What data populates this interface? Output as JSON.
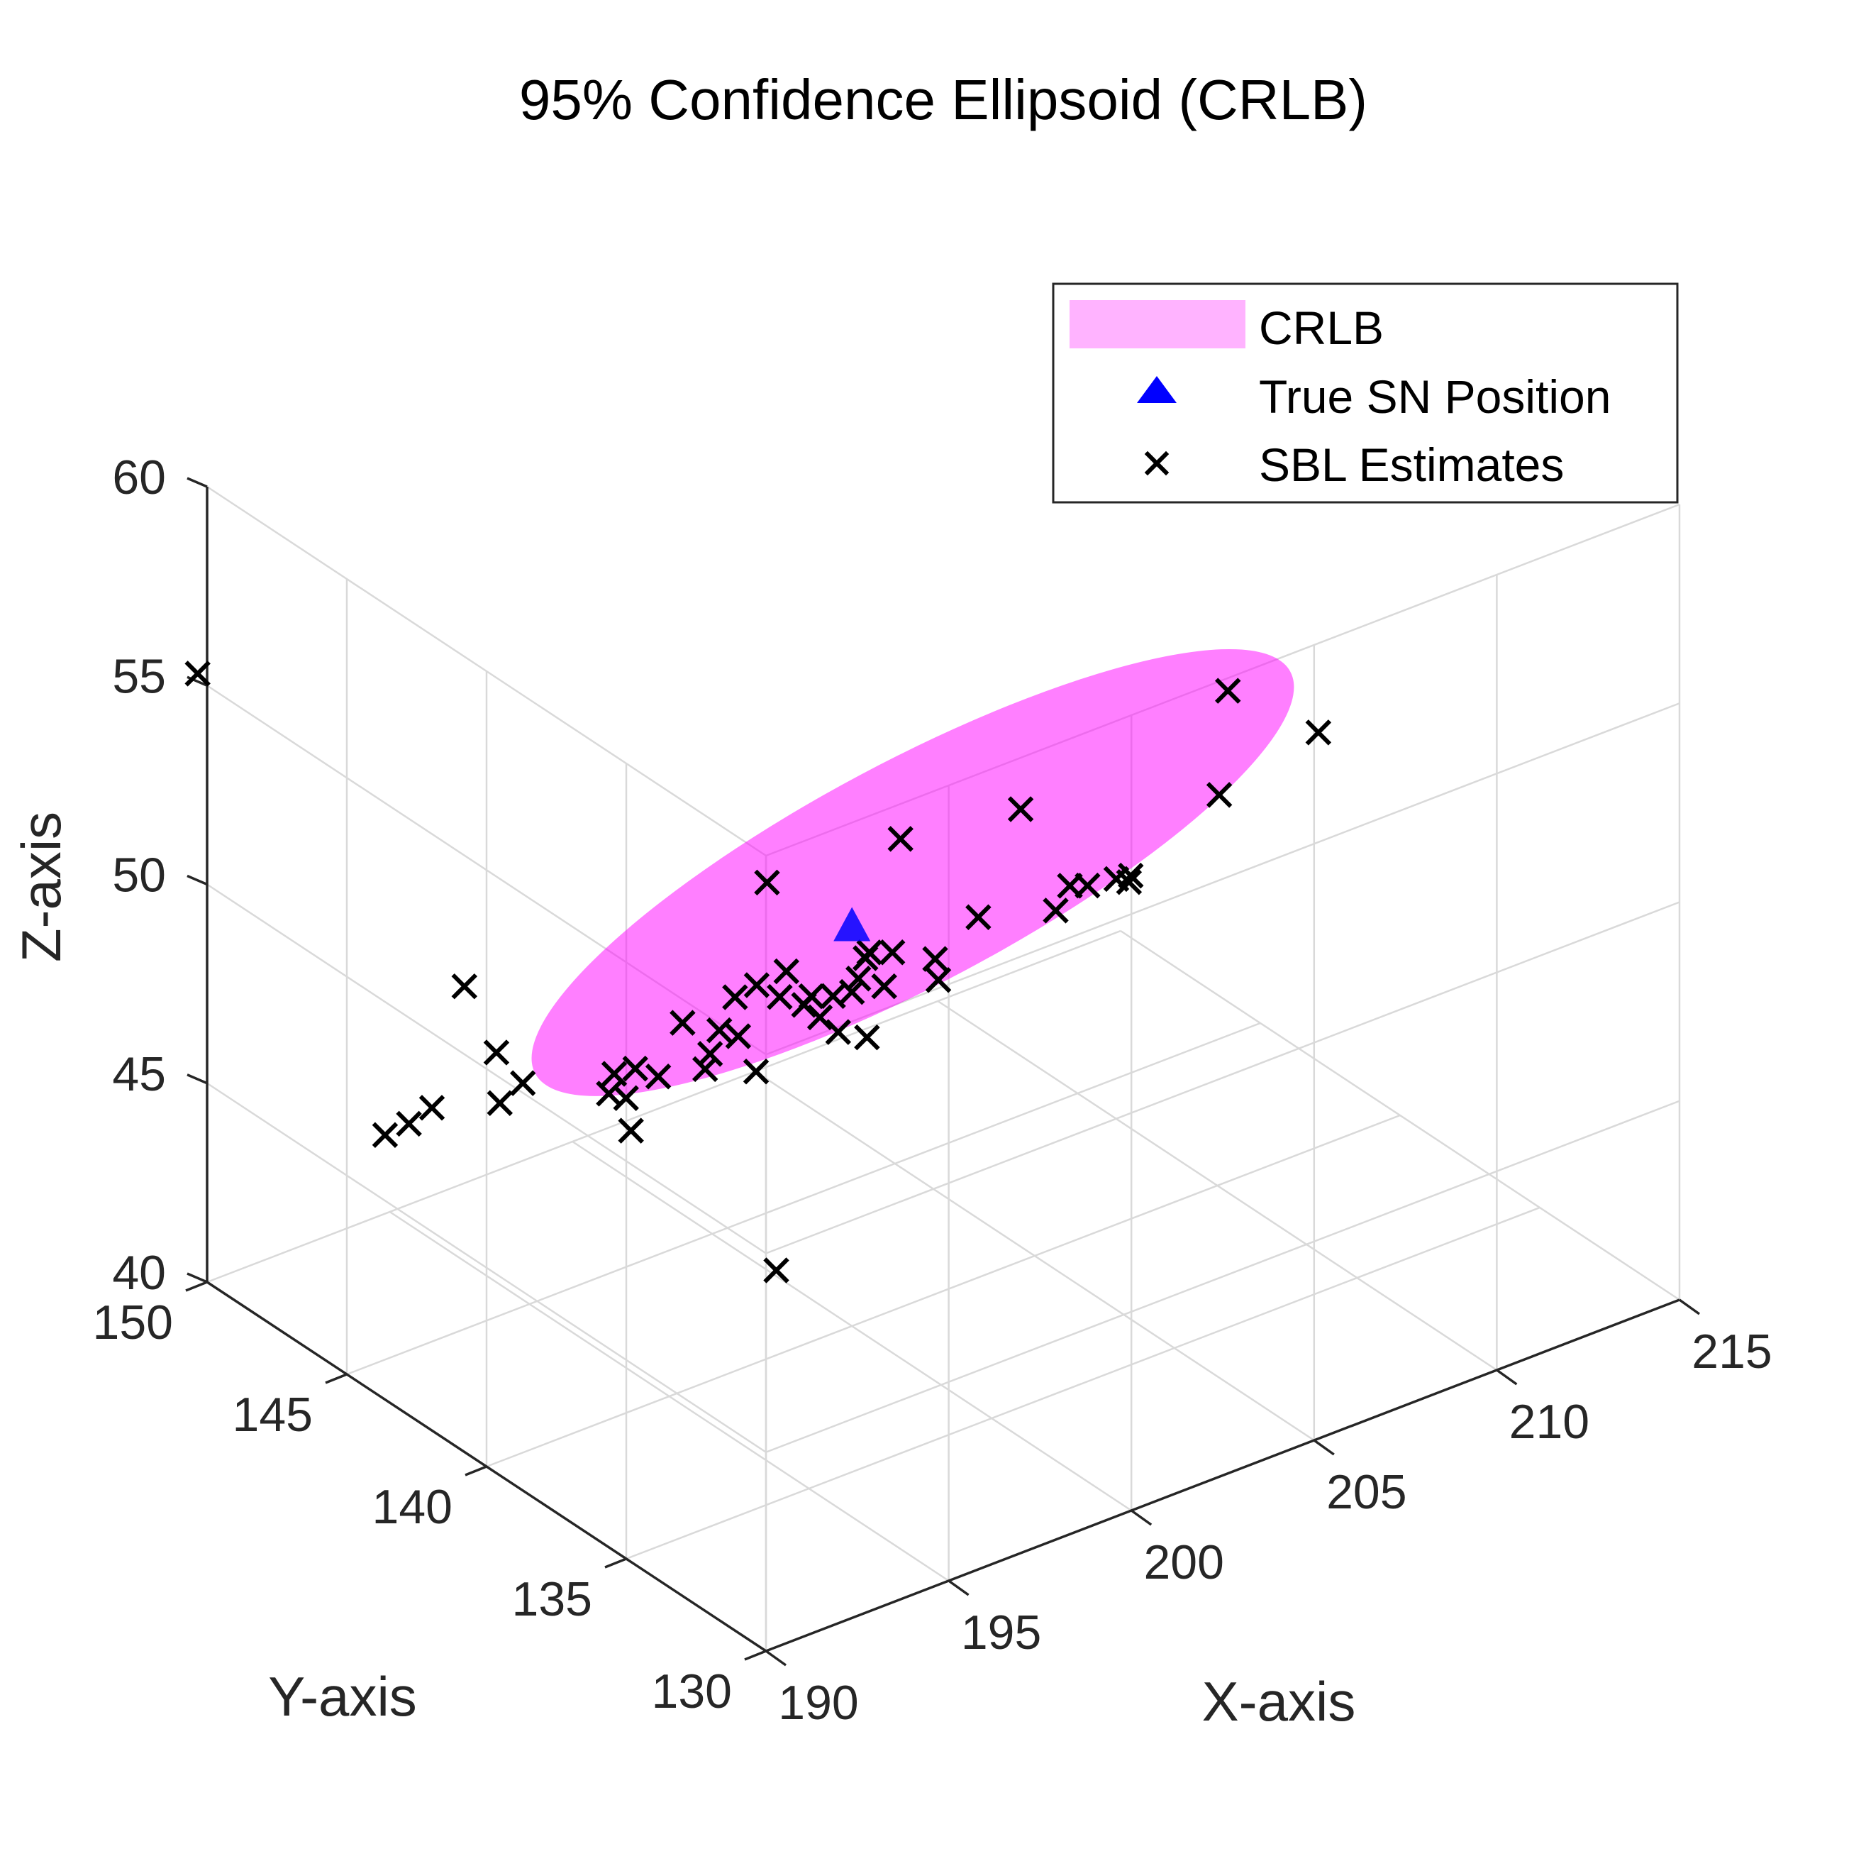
{
  "chart_data": {
    "type": "scatter3d",
    "title": "95% Confidence Ellipsoid (CRLB)",
    "xlabel": "X-axis",
    "ylabel": "Y-axis",
    "zlabel": "Z-axis",
    "xlim": [
      190,
      215
    ],
    "ylim": [
      130,
      150
    ],
    "zlim": [
      40,
      60
    ],
    "xticks": [
      190,
      195,
      200,
      205,
      210,
      215
    ],
    "yticks": [
      130,
      135,
      140,
      145,
      150
    ],
    "zticks": [
      40,
      45,
      50,
      55,
      60
    ],
    "grid": true,
    "legend": {
      "placement": "top-right",
      "entries": [
        {
          "label": "CRLB",
          "type": "patch",
          "color": "#FFB3FF"
        },
        {
          "label": "True SN Position",
          "type": "triangle",
          "color": "#0000FF"
        },
        {
          "label": "SBL Estimates",
          "type": "x",
          "color": "#000000"
        }
      ]
    },
    "ellipsoid": {
      "label": "CRLB",
      "color": "#FF00FF",
      "opacity": 0.5,
      "center": [
        202.2,
        140.7,
        50.3
      ],
      "semi_axes": [
        11.5,
        2.2,
        4.5
      ],
      "rotation_deg": 28
    },
    "true_position": {
      "label": "True SN Position",
      "x": 200,
      "y": 140,
      "z": 50,
      "color": "#0000FF"
    },
    "estimates": {
      "label": "SBL Estimates",
      "marker": "x",
      "color": "#000000",
      "points": [
        [
          206.1,
          138.0,
          50.1
        ],
        [
          205.2,
          139.0,
          49.7
        ],
        [
          205.0,
          140.5,
          51.0
        ],
        [
          201.1,
          139.7,
          52.0
        ],
        [
          198.9,
          141.6,
          50.8
        ],
        [
          200.0,
          140.0,
          48.4
        ],
        [
          200.5,
          139.5,
          48.6
        ],
        [
          199.8,
          139.2,
          47.7
        ],
        [
          202.2,
          139.9,
          48.5
        ],
        [
          199.2,
          140.1,
          48.0
        ],
        [
          200.6,
          140.3,
          48.9
        ],
        [
          201.6,
          139.0,
          48.6
        ],
        [
          200.4,
          141.2,
          47.6
        ],
        [
          200.8,
          139.6,
          49.3
        ],
        [
          206.7,
          139.3,
          49.2
        ],
        [
          203.0,
          139.4,
          49.5
        ],
        [
          204.2,
          138.2,
          49.8
        ],
        [
          205.9,
          137.8,
          50.1
        ],
        [
          205.3,
          138.5,
          49.9
        ],
        [
          208.6,
          138.1,
          51.2
        ],
        [
          209.6,
          139.1,
          53.0
        ],
        [
          210.7,
          137.3,
          52.4
        ],
        [
          198.0,
          139.1,
          49.2
        ],
        [
          197.3,
          139.9,
          47.4
        ],
        [
          197.7,
          140.4,
          49.2
        ],
        [
          199.2,
          141.3,
          48.6
        ],
        [
          198.1,
          140.1,
          48.9
        ],
        [
          196.6,
          140.3,
          48.5
        ],
        [
          197.5,
          140.8,
          47.8
        ],
        [
          196.9,
          141.2,
          47.0
        ],
        [
          196.0,
          141.7,
          46.9
        ],
        [
          195.5,
          142.2,
          46.3
        ],
        [
          195.6,
          142.0,
          47.1
        ],
        [
          194.8,
          141.9,
          46.8
        ],
        [
          197.8,
          142.2,
          46.6
        ],
        [
          192.3,
          143.8,
          49.5
        ],
        [
          193.1,
          143.7,
          47.6
        ],
        [
          193.5,
          144.1,
          46.0
        ],
        [
          192.1,
          144.7,
          46.1
        ],
        [
          193.9,
          143.8,
          46.5
        ],
        [
          199.5,
          140.8,
          48.1
        ],
        [
          191.2,
          145.2,
          45.5
        ],
        [
          191.7,
          145.0,
          45.7
        ],
        [
          195.1,
          142.1,
          47.1
        ],
        [
          200.4,
          139.9,
          49.3
        ],
        [
          201.4,
          141.6,
          47.5
        ],
        [
          197.2,
          142.4,
          47.5
        ],
        [
          196.8,
          140.0,
          49.4
        ],
        [
          198.4,
          138.4,
          48.7
        ],
        [
          188.9,
          148.9,
          56.2
        ],
        [
          196.4,
          143.2,
          44.7
        ],
        [
          196.4,
          138.0,
          43.6
        ]
      ]
    }
  }
}
